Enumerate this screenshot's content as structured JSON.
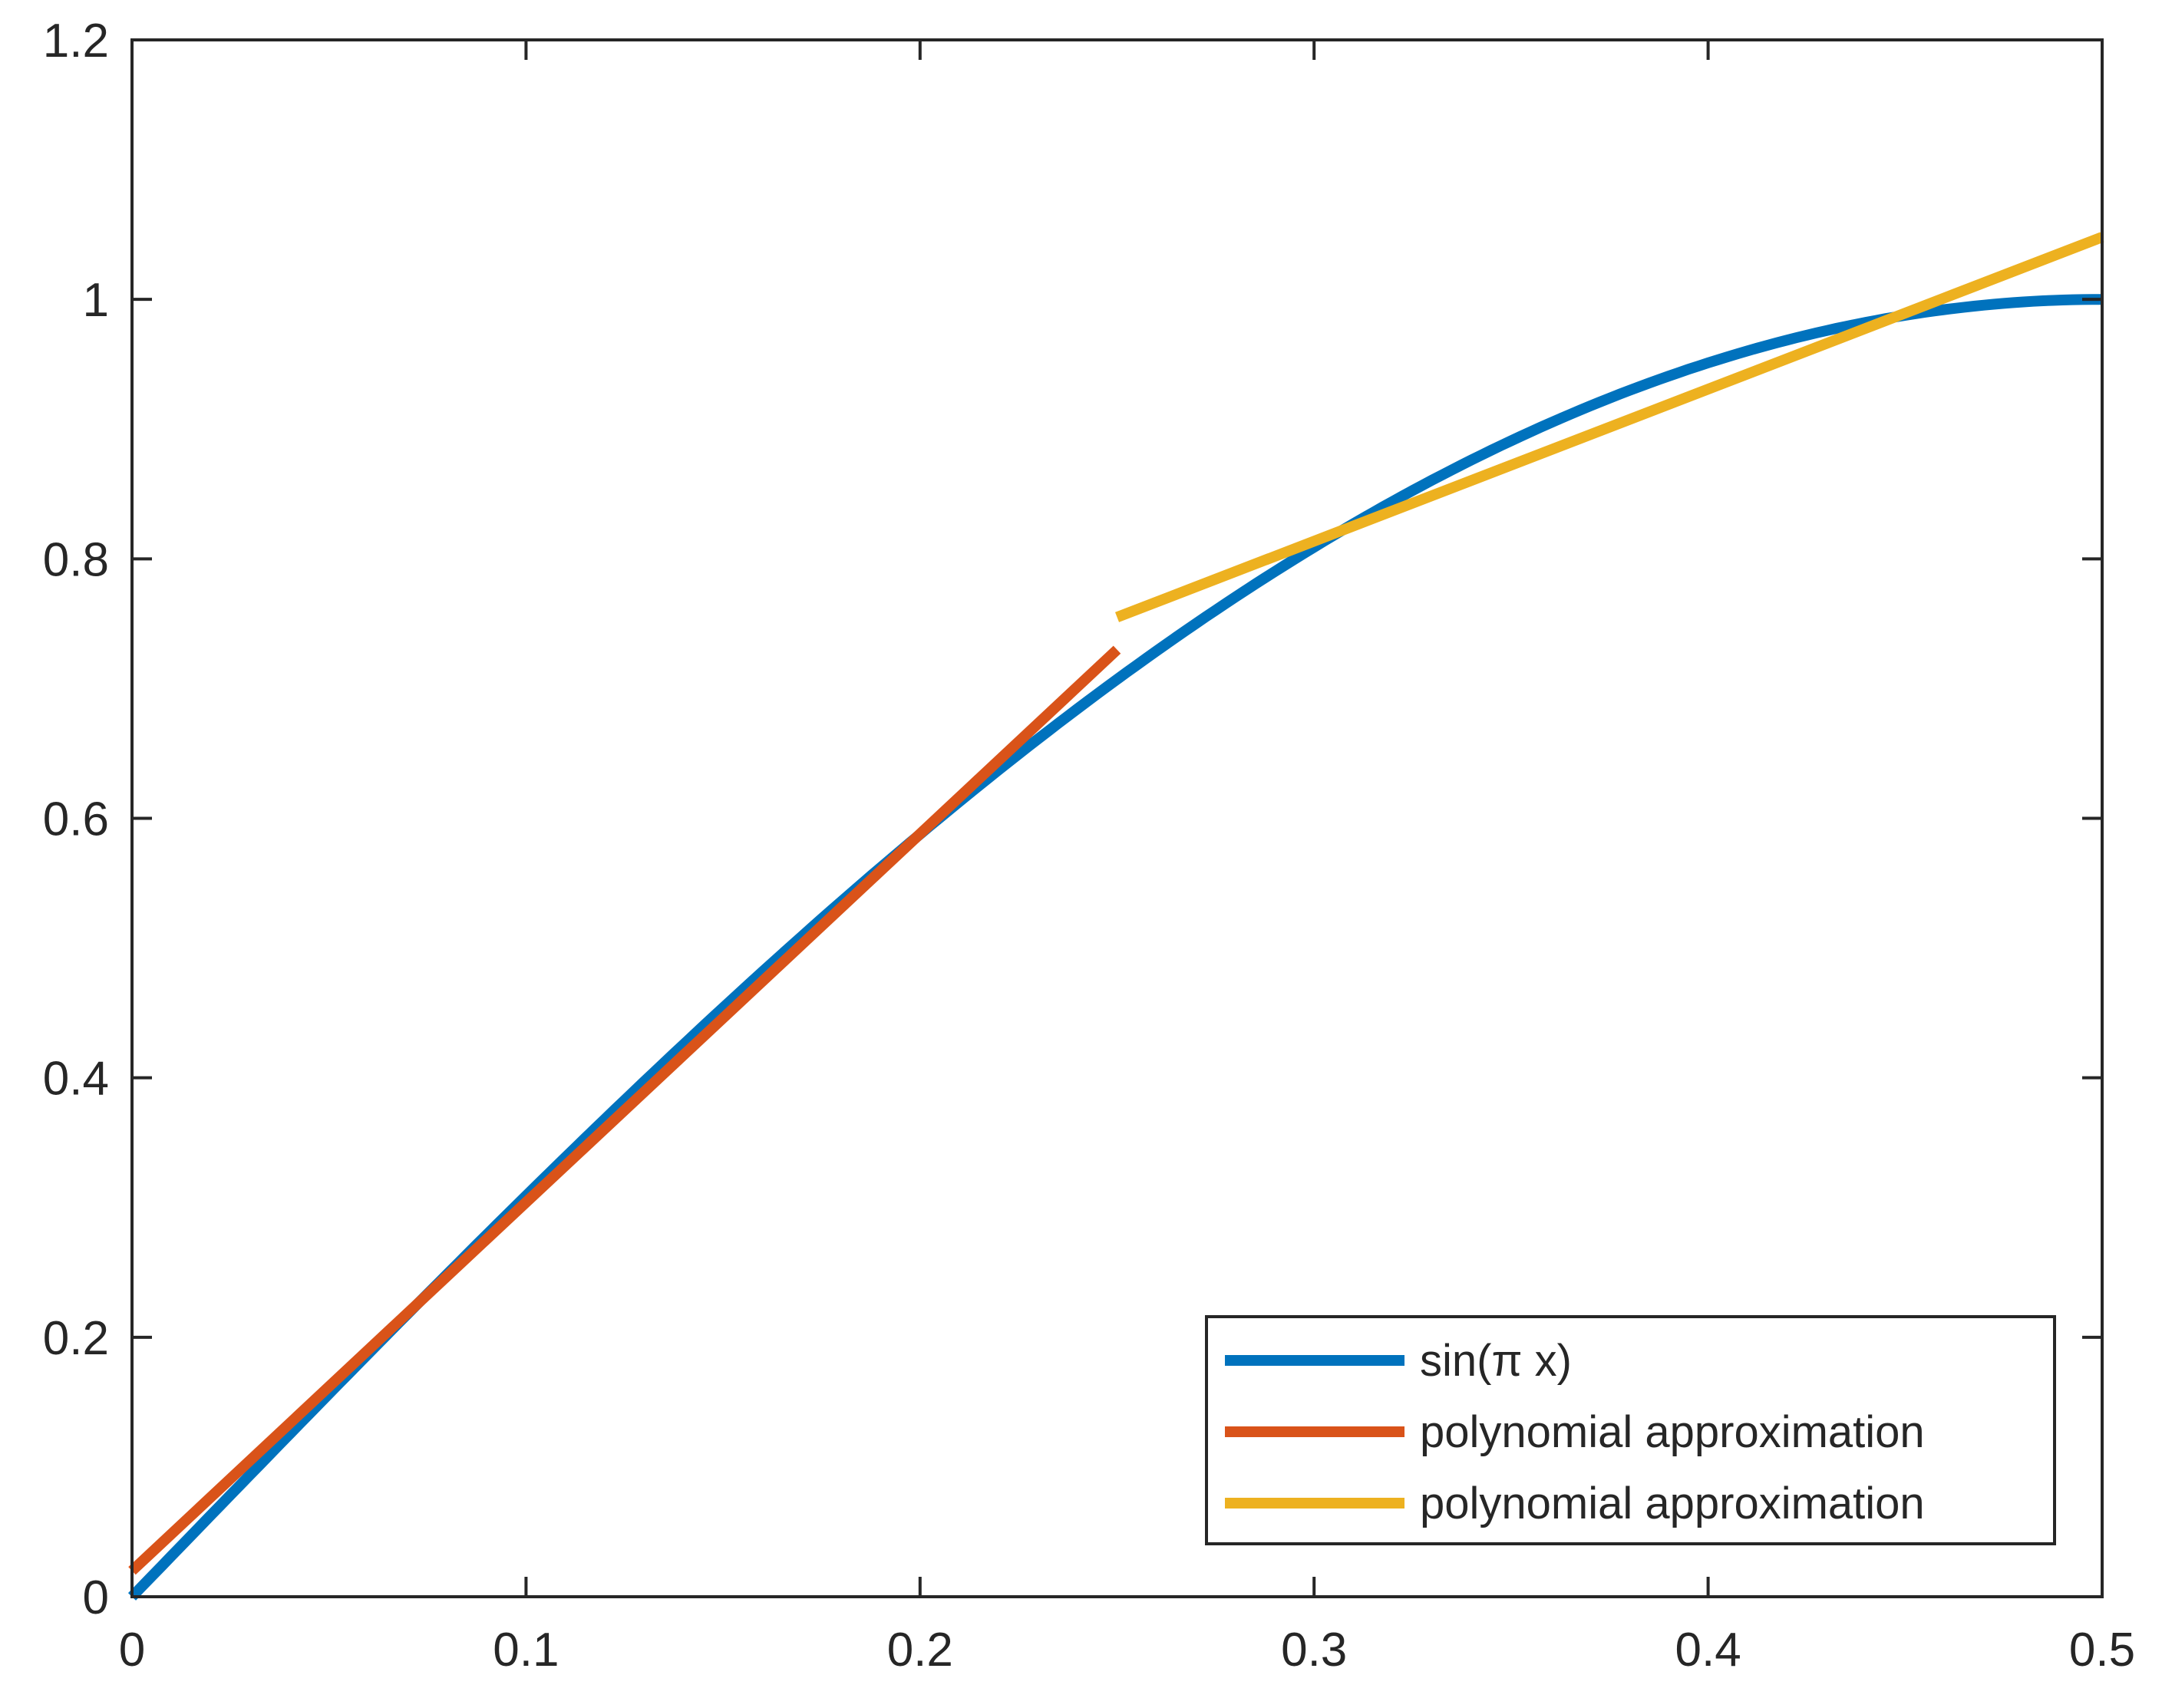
{
  "chart_data": {
    "type": "line",
    "title": "",
    "xlabel": "",
    "ylabel": "",
    "xlim": [
      0,
      0.5
    ],
    "ylim": [
      0,
      1.2
    ],
    "xticks": [
      "0",
      "0.1",
      "0.2",
      "0.3",
      "0.4",
      "0.5"
    ],
    "yticks": [
      "0",
      "0.2",
      "0.4",
      "0.6",
      "0.8",
      "1",
      "1.2"
    ],
    "grid": false,
    "legend_position": "bottom-right",
    "series": [
      {
        "name": "sin(π x)",
        "color": "#0072BD",
        "function": "sin(pi*x)",
        "x": [
          0,
          0.05,
          0.1,
          0.15,
          0.2,
          0.25,
          0.3,
          0.35,
          0.4,
          0.45,
          0.5
        ],
        "y": [
          0,
          0.1564,
          0.309,
          0.454,
          0.5878,
          0.7071,
          0.809,
          0.891,
          0.9511,
          0.9877,
          1.0
        ]
      },
      {
        "name": "polynomial approximation",
        "color": "#D95319",
        "x": [
          0,
          0.25
        ],
        "y": [
          0.02,
          0.73
        ]
      },
      {
        "name": "polynomial approximation",
        "color": "#EDB120",
        "x": [
          0.25,
          0.5
        ],
        "y": [
          0.755,
          1.048
        ]
      }
    ]
  }
}
